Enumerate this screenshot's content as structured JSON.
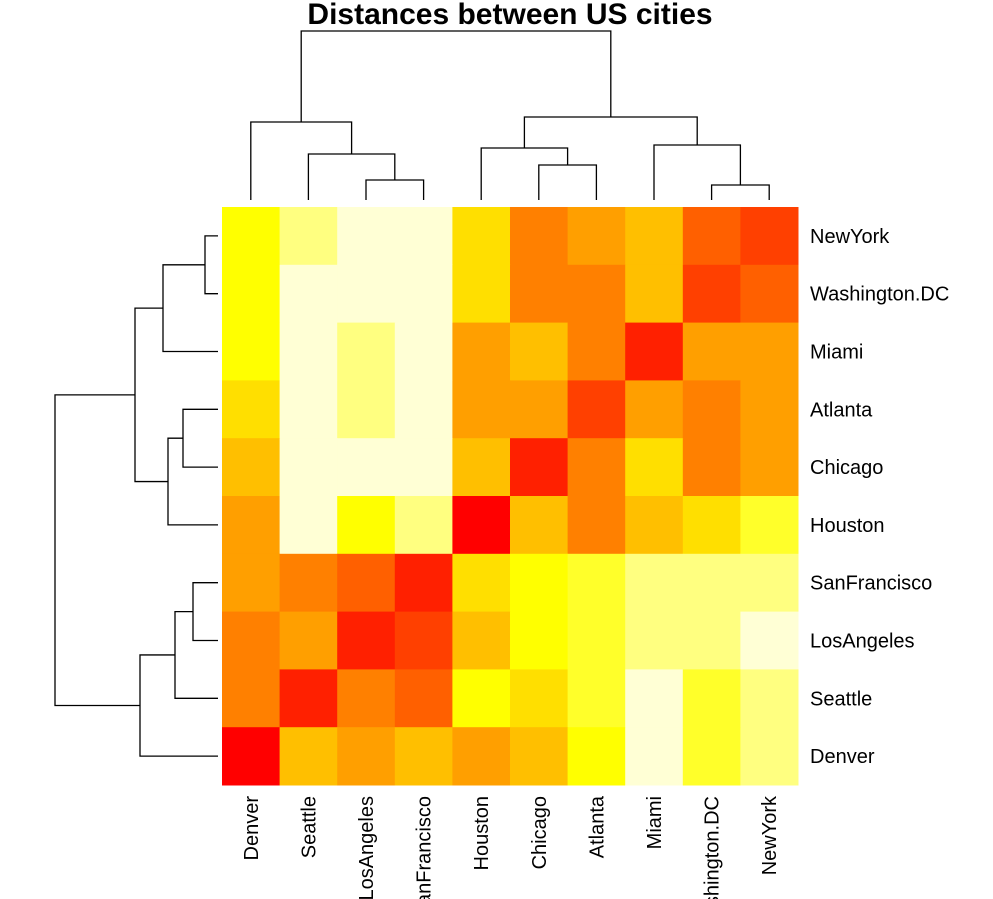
{
  "chart_data": {
    "type": "heatmap",
    "title": "Distances between US cities",
    "columns": [
      "Denver",
      "Seattle",
      "LosAngeles",
      "SanFrancisco",
      "Houston",
      "Chicago",
      "Atlanta",
      "Miami",
      "Washington.DC",
      "NewYork"
    ],
    "rows": [
      "NewYork",
      "Washington.DC",
      "Miami",
      "Atlanta",
      "Chicago",
      "Houston",
      "SanFrancisco",
      "LosAngeles",
      "Seattle",
      "Denver"
    ],
    "palette": [
      "#FF0000",
      "#FF2000",
      "#FF4000",
      "#FF6000",
      "#FF8000",
      "#FF9F00",
      "#FFBF00",
      "#FFDF00",
      "#FFFF00",
      "#FFFF2A",
      "#FFFF80",
      "#FFFFD5"
    ],
    "color_levels": [
      [
        8,
        10,
        11,
        11,
        7,
        4,
        5,
        6,
        3,
        2
      ],
      [
        8,
        11,
        11,
        11,
        7,
        4,
        4,
        6,
        2,
        3
      ],
      [
        8,
        11,
        10,
        11,
        5,
        6,
        4,
        1,
        5,
        5
      ],
      [
        7,
        11,
        10,
        11,
        5,
        5,
        2,
        5,
        4,
        5
      ],
      [
        6,
        11,
        11,
        11,
        6,
        1,
        4,
        7,
        4,
        5
      ],
      [
        5,
        11,
        8,
        10,
        0,
        6,
        4,
        6,
        7,
        9
      ],
      [
        5,
        4,
        3,
        1,
        7,
        8,
        9,
        10,
        10,
        10
      ],
      [
        4,
        5,
        1,
        2,
        6,
        8,
        9,
        10,
        10,
        11
      ],
      [
        4,
        1,
        4,
        3,
        8,
        7,
        9,
        11,
        9,
        10
      ],
      [
        0,
        6,
        5,
        6,
        5,
        6,
        8,
        11,
        9,
        10
      ]
    ],
    "column_dendrogram": "((Denver,(Seattle,(LosAngeles,SanFrancisco))),((Houston,(Chicago,Atlanta)),(Miami,(Washington.DC,NewYork))))",
    "row_dendrogram": "(((Miami,(NewYork,Washington.DC)),(Houston,(Atlanta,Chicago))),(Denver,(Seattle,(SanFrancisco,LosAngeles))))"
  }
}
